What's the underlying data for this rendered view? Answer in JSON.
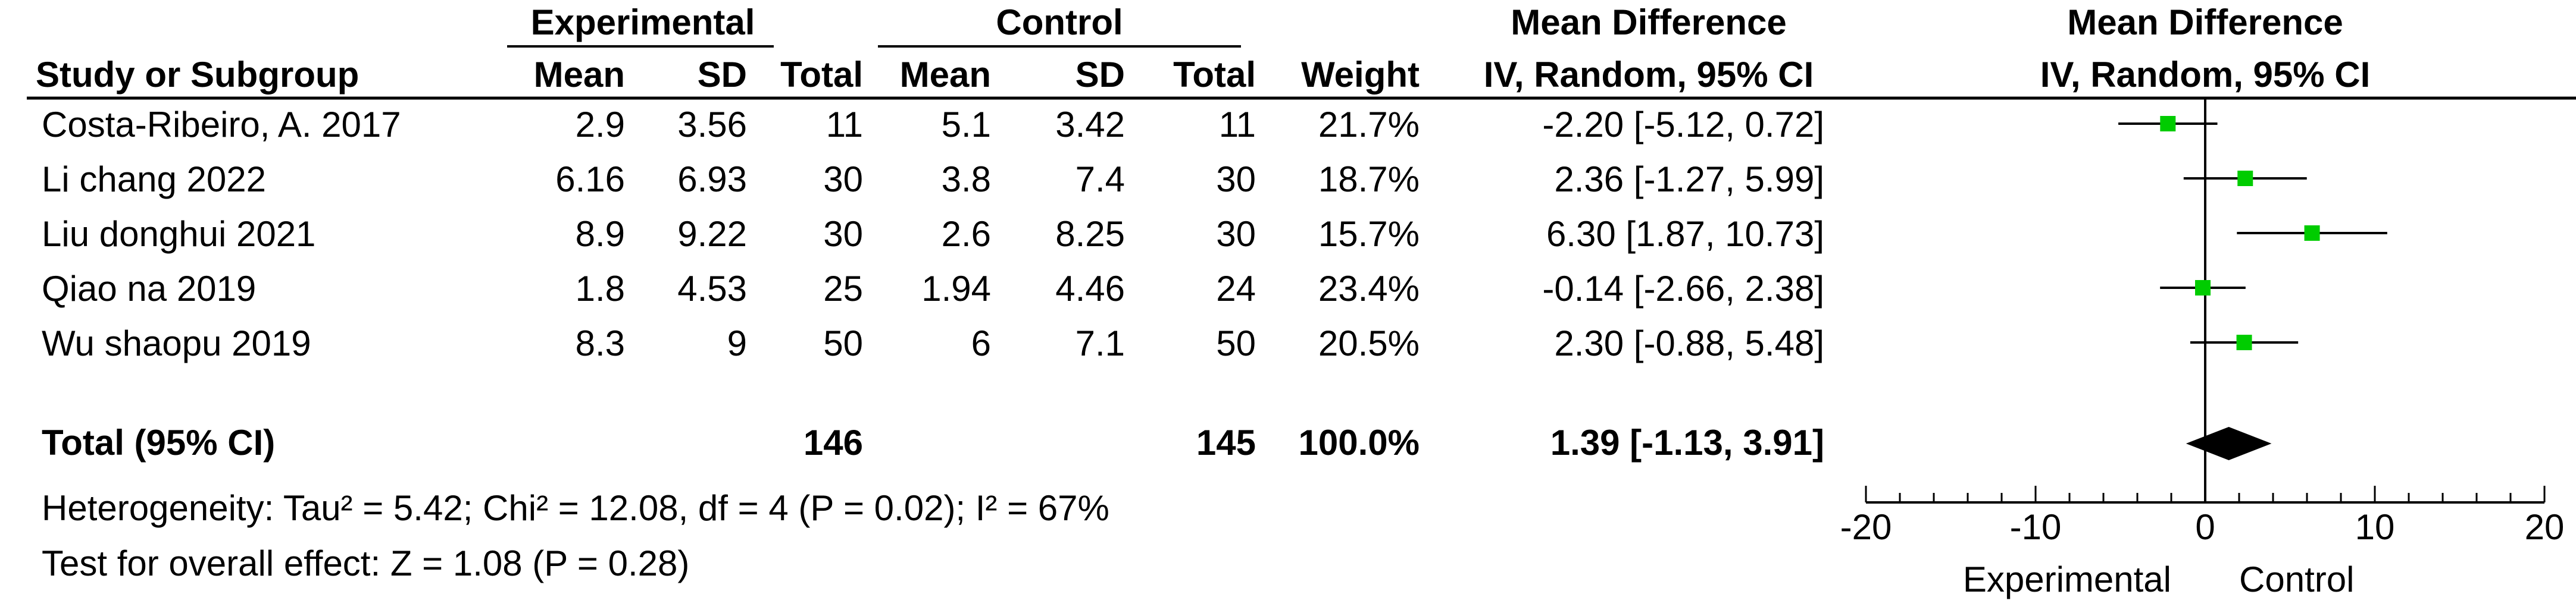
{
  "table": {
    "group_headers": {
      "experimental": "Experimental",
      "control": "Control",
      "effect_left": "Mean Difference",
      "effect_right": "Mean Difference"
    },
    "column_headers": {
      "study": "Study or Subgroup",
      "exp_mean": "Mean",
      "exp_sd": "SD",
      "exp_total": "Total",
      "ctl_mean": "Mean",
      "ctl_sd": "SD",
      "ctl_total": "Total",
      "weight": "Weight",
      "effect_left": "IV, Random, 95% CI",
      "effect_right": "IV, Random, 95% CI"
    },
    "studies": [
      {
        "study": "Costa-Ribeiro, A. 2017",
        "exp_mean": "2.9",
        "exp_sd": "3.56",
        "exp_total": "11",
        "ctl_mean": "5.1",
        "ctl_sd": "3.42",
        "ctl_total": "11",
        "weight": "21.7%",
        "ci_text": "-2.20 [-5.12, 0.72]"
      },
      {
        "study": "Li chang 2022",
        "exp_mean": "6.16",
        "exp_sd": "6.93",
        "exp_total": "30",
        "ctl_mean": "3.8",
        "ctl_sd": "7.4",
        "ctl_total": "30",
        "weight": "18.7%",
        "ci_text": "2.36 [-1.27, 5.99]"
      },
      {
        "study": "Liu donghui 2021",
        "exp_mean": "8.9",
        "exp_sd": "9.22",
        "exp_total": "30",
        "ctl_mean": "2.6",
        "ctl_sd": "8.25",
        "ctl_total": "30",
        "weight": "15.7%",
        "ci_text": "6.30 [1.87, 10.73]"
      },
      {
        "study": "Qiao na 2019",
        "exp_mean": "1.8",
        "exp_sd": "4.53",
        "exp_total": "25",
        "ctl_mean": "1.94",
        "ctl_sd": "4.46",
        "ctl_total": "24",
        "weight": "23.4%",
        "ci_text": "-0.14 [-2.66, 2.38]"
      },
      {
        "study": "Wu shaopu 2019",
        "exp_mean": "8.3",
        "exp_sd": "9",
        "exp_total": "50",
        "ctl_mean": "6",
        "ctl_sd": "7.1",
        "ctl_total": "50",
        "weight": "20.5%",
        "ci_text": "2.30 [-0.88, 5.48]"
      }
    ],
    "total": {
      "label": "Total (95% CI)",
      "exp_total": "146",
      "ctl_total": "145",
      "weight": "100.0%",
      "ci_text": "1.39 [-1.13, 3.91]"
    },
    "heterogeneity": "Heterogeneity: Tau² = 5.42; Chi² = 12.08, df = 4 (P = 0.02); I² = 67%",
    "overall_effect": "Test for overall effect: Z = 1.08 (P = 0.28)"
  },
  "chart_data": {
    "type": "scatter",
    "subtype": "forest_plot",
    "title": "Mean Difference",
    "subtitle": "IV, Random, 95% CI",
    "xlim": [
      -20,
      20
    ],
    "x_ticks": [
      -20,
      -10,
      0,
      10,
      20
    ],
    "x_tick_labels": [
      "-20",
      "-10",
      "0",
      "10",
      "20"
    ],
    "favours_left": "Experimental",
    "favours_right": "Control",
    "series": [
      {
        "study": "Costa-Ribeiro, A. 2017",
        "estimate": -2.2,
        "ci_low": -5.12,
        "ci_high": 0.72,
        "weight": 21.7
      },
      {
        "study": "Li chang 2022",
        "estimate": 2.36,
        "ci_low": -1.27,
        "ci_high": 5.99,
        "weight": 18.7
      },
      {
        "study": "Liu donghui 2021",
        "estimate": 6.3,
        "ci_low": 1.87,
        "ci_high": 10.73,
        "weight": 15.7
      },
      {
        "study": "Qiao na 2019",
        "estimate": -0.14,
        "ci_low": -2.66,
        "ci_high": 2.38,
        "weight": 23.4
      },
      {
        "study": "Wu shaopu 2019",
        "estimate": 2.3,
        "ci_low": -0.88,
        "ci_high": 5.48,
        "weight": 20.5
      }
    ],
    "pooled": {
      "estimate": 1.39,
      "ci_low": -1.13,
      "ci_high": 3.91
    },
    "colors": {
      "study_marker": "#00cc00",
      "pooled_diamond": "#000000",
      "lines": "#000000"
    }
  }
}
